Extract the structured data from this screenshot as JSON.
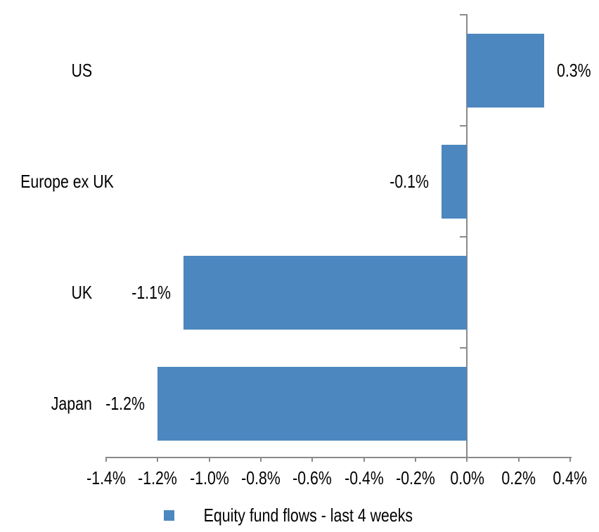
{
  "chart_data": {
    "type": "bar",
    "orientation": "horizontal",
    "title": "",
    "xlabel": "",
    "ylabel": "",
    "categories": [
      "US",
      "Europe ex UK",
      "UK",
      "Japan"
    ],
    "values": [
      0.3,
      -0.1,
      -1.1,
      -1.2
    ],
    "data_labels": [
      "0.3%",
      "-0.1%",
      "-1.1%",
      "-1.2%"
    ],
    "series_name": "Equity fund flows - last 4 weeks",
    "xlim": [
      -1.4,
      0.4
    ],
    "x_tick_step": 0.2,
    "x_tick_labels": [
      "-1.4%",
      "-1.2%",
      "-1.0%",
      "-0.8%",
      "-0.6%",
      "-0.4%",
      "-0.2%",
      "0.0%",
      "0.2%",
      "0.4%"
    ],
    "grid": false,
    "legend": {
      "position": "bottom",
      "entries": [
        {
          "label": "Equity fund flows - last 4 weeks",
          "color": "#4d87bf"
        }
      ]
    },
    "colors": {
      "bar": "#4d87bf",
      "axis": "#8a8a8a",
      "text": "#000000",
      "background": "#ffffff"
    }
  }
}
